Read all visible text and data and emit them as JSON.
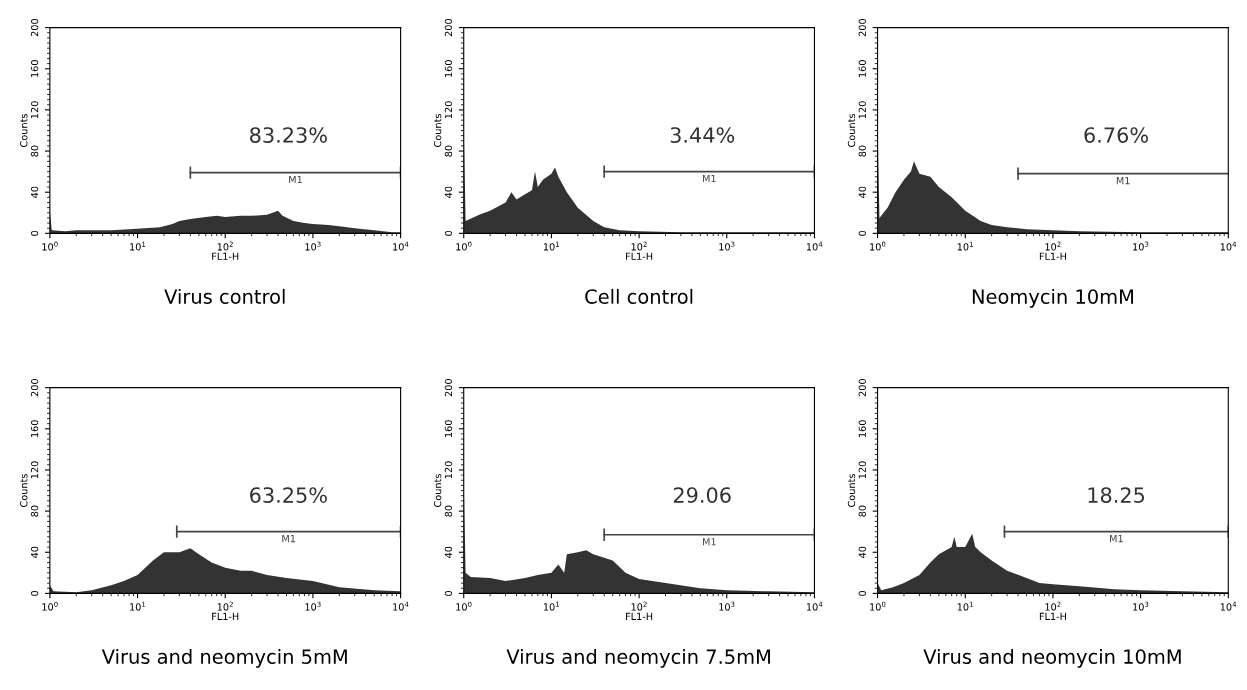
{
  "chart_data": [
    {
      "type": "area",
      "title": "Virus control",
      "xlabel": "FL1-H",
      "ylabel": "Counts",
      "log": "x",
      "xlim": [
        1,
        10000
      ],
      "ylim": [
        0,
        200
      ],
      "xticks": [
        {
          "value": 1,
          "label": "10$^{0}$"
        },
        {
          "value": 10,
          "label": "10$^{1}$"
        },
        {
          "value": 100,
          "label": "10$^{2}$"
        },
        {
          "value": 1000,
          "label": "10$^{3}$"
        },
        {
          "value": 10000,
          "label": "10$^{4}$"
        }
      ],
      "yticks": [
        0,
        40,
        80,
        120,
        160,
        200
      ],
      "series": [
        {
          "color": "#333333",
          "x": [
            1,
            1.05,
            1.5,
            2,
            3,
            5,
            8,
            12,
            18,
            25,
            30,
            40,
            60,
            80,
            100,
            150,
            200,
            300,
            400,
            450,
            600,
            800,
            1000,
            1500,
            2000,
            3000,
            5000,
            8000,
            10000
          ],
          "values": [
            22,
            3,
            2,
            3,
            3,
            3,
            4,
            5,
            6,
            9,
            12,
            14,
            16,
            17,
            16,
            17,
            17,
            18,
            22,
            17,
            12,
            10,
            9,
            8,
            7,
            5,
            3,
            1,
            1
          ]
        },
        {
          "type": "line",
          "name": "M1",
          "color": "#444444",
          "x": [
            40,
            10000
          ],
          "values": [
            59,
            59
          ],
          "errors": [
            6,
            6
          ]
        }
      ],
      "annotations": [
        "83.23%"
      ]
    },
    {
      "type": "area",
      "title": "Cell control",
      "xlabel": "FL1-H",
      "ylabel": "Counts",
      "log": "x",
      "xlim": [
        1,
        10000
      ],
      "ylim": [
        0,
        200
      ],
      "xticks": [
        {
          "value": 1,
          "label": "10$^{0}$"
        },
        {
          "value": 10,
          "label": "10$^{1}$"
        },
        {
          "value": 100,
          "label": "10$^{2}$"
        },
        {
          "value": 1000,
          "label": "10$^{3}$"
        },
        {
          "value": 10000,
          "label": "10$^{4}$"
        }
      ],
      "yticks": [
        0,
        40,
        80,
        120,
        160,
        200
      ],
      "series": [
        {
          "color": "#333333",
          "x": [
            1,
            1.05,
            1.5,
            2,
            3,
            3.5,
            4,
            5,
            6,
            6.5,
            7,
            8,
            10,
            11,
            12,
            15,
            20,
            30,
            40,
            60,
            100,
            300,
            1000,
            10000
          ],
          "values": [
            105,
            12,
            18,
            22,
            30,
            40,
            33,
            38,
            42,
            60,
            45,
            52,
            58,
            64,
            55,
            40,
            25,
            12,
            6,
            3,
            2,
            1,
            1,
            1
          ]
        },
        {
          "type": "line",
          "name": "M1",
          "color": "#444444",
          "x": [
            40,
            10000
          ],
          "values": [
            60,
            60
          ],
          "errors": [
            6,
            6
          ]
        }
      ],
      "annotations": [
        "3.44%"
      ]
    },
    {
      "type": "area",
      "title": "Neomycin 10mM",
      "xlabel": "FL1-H",
      "ylabel": "Counts",
      "log": "x",
      "xlim": [
        1,
        10000
      ],
      "ylim": [
        0,
        200
      ],
      "xticks": [
        {
          "value": 1,
          "label": "10$^{0}$"
        },
        {
          "value": 10,
          "label": "10$^{1}$"
        },
        {
          "value": 100,
          "label": "10$^{2}$"
        },
        {
          "value": 1000,
          "label": "10$^{3}$"
        },
        {
          "value": 10000,
          "label": "10$^{4}$"
        }
      ],
      "yticks": [
        0,
        40,
        80,
        120,
        160,
        200
      ],
      "series": [
        {
          "color": "#333333",
          "x": [
            1,
            1.05,
            1.3,
            1.6,
            2,
            2.4,
            2.6,
            3,
            4,
            5,
            7,
            10,
            15,
            20,
            30,
            50,
            100,
            200,
            1000,
            10000
          ],
          "values": [
            107,
            15,
            25,
            40,
            52,
            60,
            70,
            58,
            55,
            45,
            35,
            22,
            12,
            8,
            6,
            4,
            3,
            2,
            1,
            1
          ]
        },
        {
          "type": "line",
          "name": "M1",
          "color": "#444444",
          "x": [
            40,
            10000
          ],
          "values": [
            58,
            58
          ],
          "errors": [
            6,
            null
          ]
        }
      ],
      "annotations": [
        "6.76%"
      ]
    },
    {
      "type": "area",
      "title": "Virus and neomycin 5mM",
      "xlabel": "FL1-H",
      "ylabel": "Counts",
      "log": "x",
      "xlim": [
        1,
        10000
      ],
      "ylim": [
        0,
        200
      ],
      "xticks": [
        {
          "value": 1,
          "label": "10$^{0}$"
        },
        {
          "value": 10,
          "label": "10$^{1}$"
        },
        {
          "value": 100,
          "label": "10$^{2}$"
        },
        {
          "value": 1000,
          "label": "10$^{3}$"
        },
        {
          "value": 10000,
          "label": "10$^{4}$"
        }
      ],
      "yticks": [
        0,
        40,
        80,
        120,
        160,
        200
      ],
      "series": [
        {
          "color": "#333333",
          "x": [
            1,
            1.1,
            2,
            3,
            5,
            7,
            10,
            15,
            20,
            30,
            40,
            50,
            70,
            100,
            150,
            200,
            300,
            500,
            1000,
            2000,
            5000,
            10000
          ],
          "values": [
            8,
            2,
            1,
            3,
            8,
            12,
            18,
            32,
            40,
            40,
            44,
            38,
            30,
            25,
            22,
            22,
            18,
            15,
            12,
            6,
            3,
            2
          ]
        },
        {
          "type": "line",
          "name": "M1",
          "color": "#444444",
          "x": [
            28,
            10000
          ],
          "values": [
            60,
            60
          ],
          "errors": [
            6,
            6
          ]
        }
      ],
      "annotations": [
        "63.25%"
      ]
    },
    {
      "type": "area",
      "title": "Virus and neomycin 7.5mM",
      "xlabel": "FL1-H",
      "ylabel": "Counts",
      "log": "x",
      "xlim": [
        1,
        10000
      ],
      "ylim": [
        0,
        200
      ],
      "xticks": [
        {
          "value": 1,
          "label": "10$^{0}$"
        },
        {
          "value": 10,
          "label": "10$^{1}$"
        },
        {
          "value": 100,
          "label": "10$^{2}$"
        },
        {
          "value": 1000,
          "label": "10$^{3}$"
        },
        {
          "value": 10000,
          "label": "10$^{4}$"
        }
      ],
      "yticks": [
        0,
        40,
        80,
        120,
        160,
        200
      ],
      "series": [
        {
          "color": "#333333",
          "x": [
            1,
            1.05,
            1.2,
            2,
            3,
            5,
            7,
            10,
            12,
            14,
            15,
            20,
            25,
            30,
            50,
            70,
            100,
            200,
            500,
            1000,
            3000,
            10000
          ],
          "values": [
            110,
            20,
            16,
            15,
            12,
            15,
            18,
            20,
            28,
            20,
            38,
            40,
            42,
            38,
            32,
            20,
            14,
            10,
            5,
            3,
            2,
            1
          ]
        },
        {
          "type": "line",
          "name": "M1",
          "color": "#444444",
          "x": [
            40,
            10000
          ],
          "values": [
            57,
            57
          ],
          "errors": [
            6,
            6
          ]
        }
      ],
      "annotations": [
        "29.06"
      ]
    },
    {
      "type": "area",
      "title": "Virus and neomycin 10mM",
      "xlabel": "FL1-H",
      "ylabel": "Counts",
      "log": "x",
      "xlim": [
        1,
        10000
      ],
      "ylim": [
        0,
        200
      ],
      "xticks": [
        {
          "value": 1,
          "label": "10$^{0}$"
        },
        {
          "value": 10,
          "label": "10$^{1}$"
        },
        {
          "value": 100,
          "label": "10$^{2}$"
        },
        {
          "value": 1000,
          "label": "10$^{3}$"
        },
        {
          "value": 10000,
          "label": "10$^{4}$"
        }
      ],
      "yticks": [
        0,
        40,
        80,
        120,
        160,
        200
      ],
      "series": [
        {
          "color": "#333333",
          "x": [
            1,
            1.1,
            1.5,
            2,
            3,
            4,
            5,
            7,
            7.5,
            8,
            10,
            12,
            13,
            15,
            20,
            30,
            50,
            70,
            100,
            200,
            500,
            1000,
            3000,
            10000
          ],
          "values": [
            10,
            3,
            6,
            10,
            18,
            30,
            38,
            45,
            55,
            45,
            45,
            58,
            45,
            40,
            32,
            22,
            15,
            10,
            9,
            7,
            4,
            3,
            2,
            1
          ]
        },
        {
          "type": "line",
          "name": "M1",
          "color": "#444444",
          "x": [
            28,
            10000
          ],
          "values": [
            60,
            60
          ],
          "errors": [
            6,
            6
          ]
        }
      ],
      "annotations": [
        "18.25"
      ]
    }
  ]
}
